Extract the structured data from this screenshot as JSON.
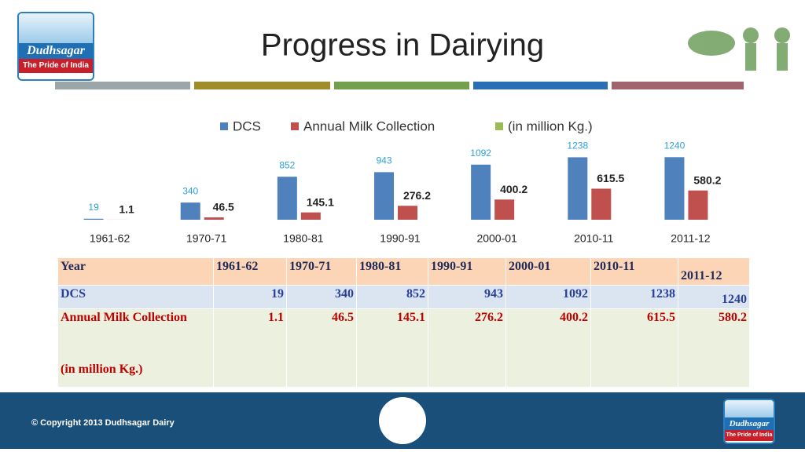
{
  "logo": {
    "name": "Dudhsagar",
    "tagline": "The Pride of India"
  },
  "chart_data": {
    "type": "bar",
    "title": "Progress in Dairying",
    "categories": [
      "1961-62",
      "1970-71",
      "1980-81",
      "1990-91",
      "2000-01",
      "2010-11",
      "2011-12"
    ],
    "series": [
      {
        "name": "DCS",
        "color": "#4f81bd",
        "values": [
          19,
          340,
          852,
          943,
          1092,
          1238,
          1240
        ]
      },
      {
        "name": "Annual Milk Collection",
        "color": "#c0504d",
        "values": [
          1.1,
          46.5,
          145.1,
          276.2,
          400.2,
          615.5,
          580.2
        ]
      },
      {
        "name": "(in million Kg.)",
        "color": "#9bbb59",
        "values": [
          null,
          null,
          null,
          null,
          null,
          null,
          null
        ]
      }
    ],
    "ylim": [
      0,
      1400
    ],
    "legend": "top"
  },
  "table": {
    "header": "Year"
  },
  "footer": {
    "copyright": "© Copyright 2013 Dudhsagar Dairy"
  }
}
